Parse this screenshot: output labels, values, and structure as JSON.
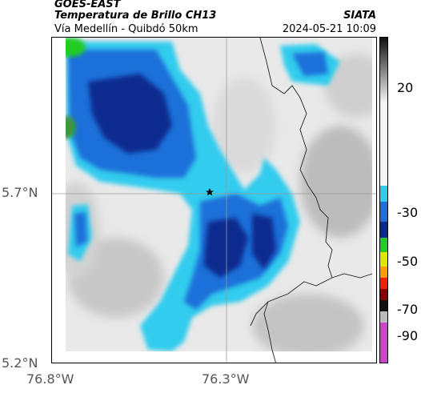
{
  "header": {
    "satellite": "GOES-EAST",
    "product": "Temperatura de Brillo CH13",
    "route": "Vía Medellín - Quibdó 50km",
    "organization": "SIATA",
    "timestamp": "2024-05-21 10:09"
  },
  "map": {
    "lat_ticks": [
      "5.7°N",
      "5.2°N"
    ],
    "lon_ticks": [
      "76.8°W",
      "76.3°W"
    ],
    "marker": "star",
    "colors": {
      "cold_cloud": "#0a2a8a",
      "mid_cloud": "#1e88e5",
      "cyan": "#22d3ee",
      "warm": "#eeeeee",
      "border": "#333333"
    }
  },
  "colorbar": {
    "ticks": [
      "20",
      "-30",
      "-50",
      "-70",
      "-90"
    ]
  }
}
